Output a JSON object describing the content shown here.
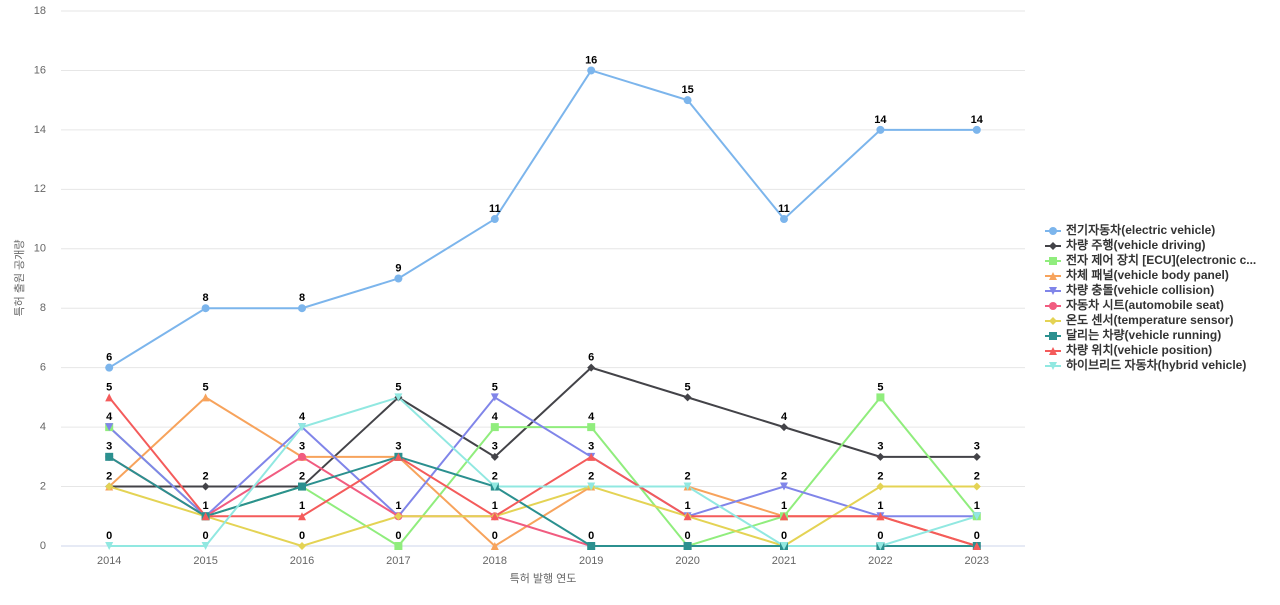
{
  "chart_data": {
    "type": "line",
    "y_axis_title": "특허 출원 공개량",
    "x_axis_title": "특허 발행 연도",
    "categories": [
      "2014",
      "2015",
      "2016",
      "2017",
      "2018",
      "2019",
      "2020",
      "2021",
      "2022",
      "2023"
    ],
    "ylim": [
      0,
      18
    ],
    "yticks": [
      0,
      2,
      4,
      6,
      8,
      10,
      12,
      14,
      16,
      18
    ],
    "grid": true,
    "legend": "right",
    "series": [
      {
        "name": "전기자동차(electric vehicle)",
        "color": "#7cb5ec",
        "values": [
          6,
          8,
          8,
          9,
          11,
          16,
          15,
          11,
          14,
          14
        ]
      },
      {
        "name": "차량 주행(vehicle driving)",
        "color": "#434348",
        "values": [
          2,
          2,
          2,
          5,
          3,
          6,
          5,
          4,
          3,
          3
        ]
      },
      {
        "name": "전자 제어 장치 [ECU](electronic c...",
        "color": "#90ed7d",
        "values": [
          4,
          1,
          2,
          0,
          4,
          4,
          0,
          1,
          5,
          1
        ]
      },
      {
        "name": "차체 패널(vehicle body panel)",
        "color": "#f7a35c",
        "values": [
          2,
          5,
          3,
          3,
          0,
          2,
          2,
          1,
          1,
          0
        ]
      },
      {
        "name": "차량 충돌(vehicle collision)",
        "color": "#8085e9",
        "values": [
          4,
          1,
          4,
          1,
          5,
          3,
          1,
          2,
          1,
          1
        ]
      },
      {
        "name": "자동차 시트(automobile seat)",
        "color": "#f15c80",
        "values": [
          3,
          1,
          3,
          1,
          1,
          0,
          0,
          0,
          0,
          0
        ]
      },
      {
        "name": "온도 센서(temperature sensor)",
        "color": "#e4d354",
        "values": [
          2,
          1,
          0,
          1,
          1,
          2,
          1,
          0,
          2,
          2
        ]
      },
      {
        "name": "달리는 차량(vehicle running)",
        "color": "#2b908f",
        "values": [
          3,
          1,
          2,
          3,
          2,
          0,
          0,
          0,
          0,
          0
        ]
      },
      {
        "name": "차량 위치(vehicle position)",
        "color": "#f45b5b",
        "values": [
          5,
          1,
          1,
          3,
          1,
          3,
          1,
          1,
          1,
          0
        ]
      },
      {
        "name": "하이브리드 자동차(hybrid vehicle)",
        "color": "#91e8e1",
        "values": [
          0,
          0,
          4,
          5,
          2,
          2,
          2,
          0,
          0,
          1
        ]
      }
    ]
  }
}
